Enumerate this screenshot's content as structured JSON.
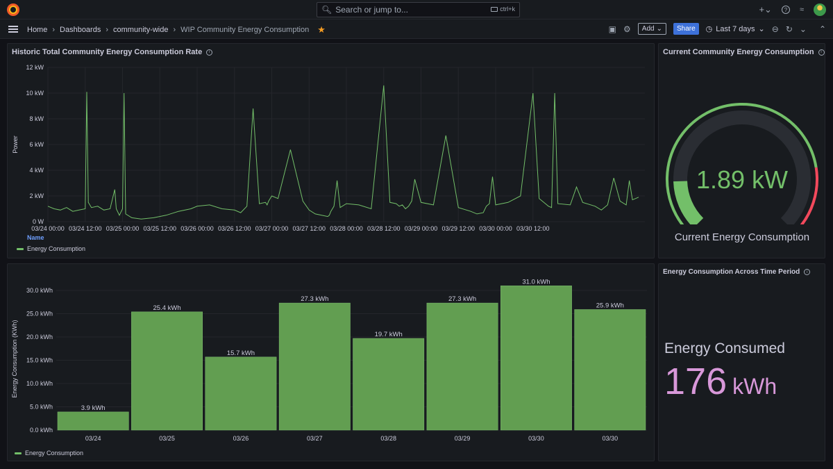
{
  "topbar": {
    "search_placeholder": "Search or jump to...",
    "search_shortcut": "ctrl+k",
    "icons": [
      "grafana-logo-icon",
      "search-icon",
      "keyboard-icon",
      "plus-icon",
      "help-icon",
      "rss-icon",
      "avatar"
    ]
  },
  "navbar": {
    "breadcrumbs": [
      "Home",
      "Dashboards",
      "community-wide",
      "WIP Community Energy Consumption"
    ],
    "add_label": "Add",
    "share_label": "Share",
    "time_range": "Last 7 days"
  },
  "timeseries_panel": {
    "title": "Historic Total Community Energy Consumption Rate",
    "legend_header": "Name",
    "legend_item": "Energy Consumption"
  },
  "gauge_panel": {
    "title": "Current Community Energy Consumption",
    "value": "1.89 kW",
    "label": "Current Energy Consumption",
    "fraction": 0.16,
    "colors": {
      "ok": "#73bf69",
      "alert": "#f2495c",
      "track": "#2a2d33"
    }
  },
  "bar_panel": {
    "legend_item": "Energy Consumption"
  },
  "stat_panel": {
    "title": "Energy Consumption Across Time Period",
    "label": "Energy Consumed",
    "value": "176",
    "unit": "kWh",
    "color": "#d898d9"
  },
  "chart_data": [
    {
      "type": "line",
      "title": "Historic Total Community Energy Consumption Rate",
      "ylabel": "Power",
      "xlabel": "",
      "ylim": [
        0,
        12
      ],
      "y_unit": "kW",
      "y_ticks": [
        "0 W",
        "2 kW",
        "4 kW",
        "6 kW",
        "8 kW",
        "10 kW",
        "12 kW"
      ],
      "x_ticks": [
        "03/24 00:00",
        "03/24 12:00",
        "03/25 00:00",
        "03/25 12:00",
        "03/26 00:00",
        "03/26 12:00",
        "03/27 00:00",
        "03/27 12:00",
        "03/28 00:00",
        "03/28 12:00",
        "03/29 00:00",
        "03/29 12:00",
        "03/30 00:00",
        "03/30 12:00"
      ],
      "grid": true,
      "legend": "bottom-left",
      "color": "#73bf69",
      "series": [
        {
          "name": "Energy Consumption",
          "x_hours": [
            0,
            2,
            4,
            6,
            8,
            10,
            12,
            12.5,
            13,
            14,
            16,
            18,
            20,
            21.5,
            22,
            23,
            24,
            24.5,
            25,
            27,
            30,
            34,
            38,
            42,
            46,
            48,
            52,
            56,
            60,
            62,
            64,
            66,
            68,
            70,
            70.5,
            71,
            72,
            74,
            78,
            82,
            84,
            86,
            88,
            90,
            90.5,
            91,
            92,
            93,
            94,
            96,
            100,
            104,
            108,
            110,
            112,
            113,
            114,
            115,
            116,
            117,
            118,
            120,
            124,
            128,
            132,
            136,
            138,
            140,
            141,
            142,
            143,
            144,
            148,
            152,
            156,
            158,
            160,
            161,
            162,
            163,
            164,
            168,
            170,
            172,
            176,
            178,
            180,
            182,
            184,
            186,
            187,
            188,
            189,
            190
          ],
          "values": [
            1.2,
            1.0,
            0.9,
            1.1,
            0.8,
            0.9,
            1.0,
            10.1,
            1.5,
            1.1,
            1.2,
            0.9,
            1.0,
            2.5,
            1.0,
            0.5,
            1.0,
            10.0,
            0.6,
            0.3,
            0.2,
            0.3,
            0.5,
            0.8,
            1.0,
            1.2,
            1.3,
            1.0,
            0.9,
            0.7,
            1.2,
            8.8,
            1.4,
            1.5,
            1.3,
            1.6,
            2.0,
            1.8,
            5.6,
            1.6,
            0.9,
            0.6,
            0.5,
            0.4,
            0.5,
            0.8,
            1.2,
            3.2,
            1.1,
            1.4,
            1.3,
            1.0,
            10.6,
            1.5,
            1.4,
            1.2,
            1.3,
            1.0,
            1.2,
            1.6,
            3.3,
            1.5,
            1.3,
            6.7,
            1.1,
            0.8,
            0.6,
            0.7,
            1.2,
            1.4,
            3.5,
            1.3,
            1.5,
            2.0,
            10.0,
            1.8,
            1.4,
            1.2,
            1.1,
            10.0,
            1.4,
            1.3,
            2.7,
            1.5,
            1.2,
            0.9,
            1.3,
            3.4,
            1.6,
            1.3,
            3.2,
            1.7,
            1.8,
            1.9
          ]
        }
      ]
    },
    {
      "type": "bar",
      "title": "",
      "xlabel": "",
      "ylabel": "Energy Consumption (KWh)",
      "ylim": [
        0,
        30
      ],
      "y_unit": "kWh",
      "y_ticks": [
        "0.0 kWh",
        "5.0 kWh",
        "10.0 kWh",
        "15.0 kWh",
        "20.0 kWh",
        "25.0 kWh",
        "30.0 kWh"
      ],
      "categories": [
        "03/24",
        "03/25",
        "03/26",
        "03/27",
        "03/28",
        "03/29",
        "03/30",
        "03/30"
      ],
      "grid": true,
      "legend": "bottom-left",
      "color": "#629e51",
      "series": [
        {
          "name": "Energy Consumption",
          "values": [
            3.9,
            25.4,
            15.7,
            27.3,
            19.7,
            27.3,
            31.0,
            25.9
          ],
          "labels": [
            "3.9 kWh",
            "25.4 kWh",
            "15.7 kWh",
            "27.3 kWh",
            "19.7 kWh",
            "27.3 kWh",
            "31.0 kWh",
            "25.9 kWh"
          ]
        }
      ]
    }
  ]
}
